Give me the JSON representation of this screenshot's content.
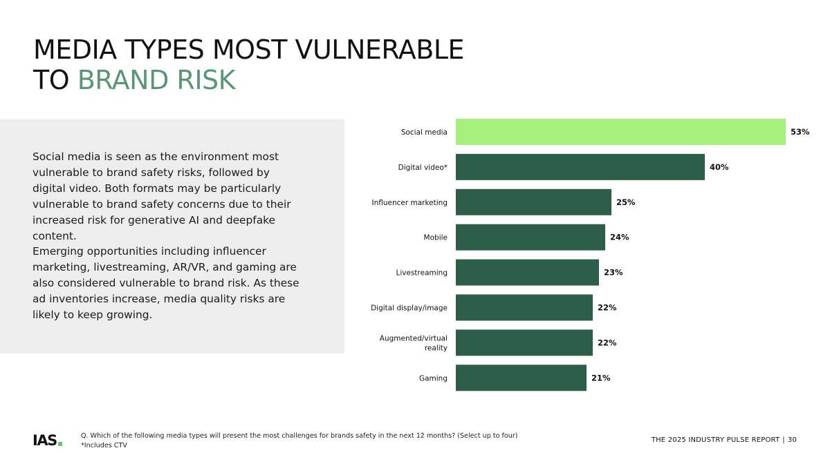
{
  "header": {
    "title_line1": "MEDIA TYPES MOST VULNERABLE",
    "title_line2_prefix": "TO",
    "title_line2_accent": "BRAND RISK",
    "accent_color": "#5a9676"
  },
  "panel": {
    "paragraph1": "Social media is seen as the environment most vulnerable to brand safety risks, followed by digital video. Both formats may be particularly vulnerable to brand safety concerns due to their increased risk for generative AI and deepfake content.",
    "paragraph2": "Emerging opportunities including influencer marketing, livestreaming, AR/VR, and gaming are also considered vulnerable to brand risk. As these ad inventories increase, media quality risks are likely to keep growing."
  },
  "chart_data": {
    "type": "bar",
    "orientation": "horizontal",
    "categories": [
      "Social media",
      "Digital video*",
      "Influencer marketing",
      "Mobile",
      "Livestreaming",
      "Digital display/image",
      "Augmented/virtual reality",
      "Gaming"
    ],
    "values": [
      53,
      40,
      25,
      24,
      23,
      22,
      22,
      21
    ],
    "value_labels": [
      "53%",
      "40%",
      "25%",
      "24%",
      "23%",
      "22%",
      "22%",
      "21%"
    ],
    "unit": "%",
    "xlim": [
      0,
      53
    ],
    "grid": false,
    "highlight_color": "#a8f07e",
    "bar_color": "#2e5e4a"
  },
  "footer": {
    "logo_text": "IAS",
    "question": "Q. Which of the following media types will present the most challenges for brands safety in the next 12 months? (Select up to four)",
    "note": "*Includes CTV",
    "report_title": "THE 2025 INDUSTRY PULSE REPORT",
    "page_number": "30"
  }
}
